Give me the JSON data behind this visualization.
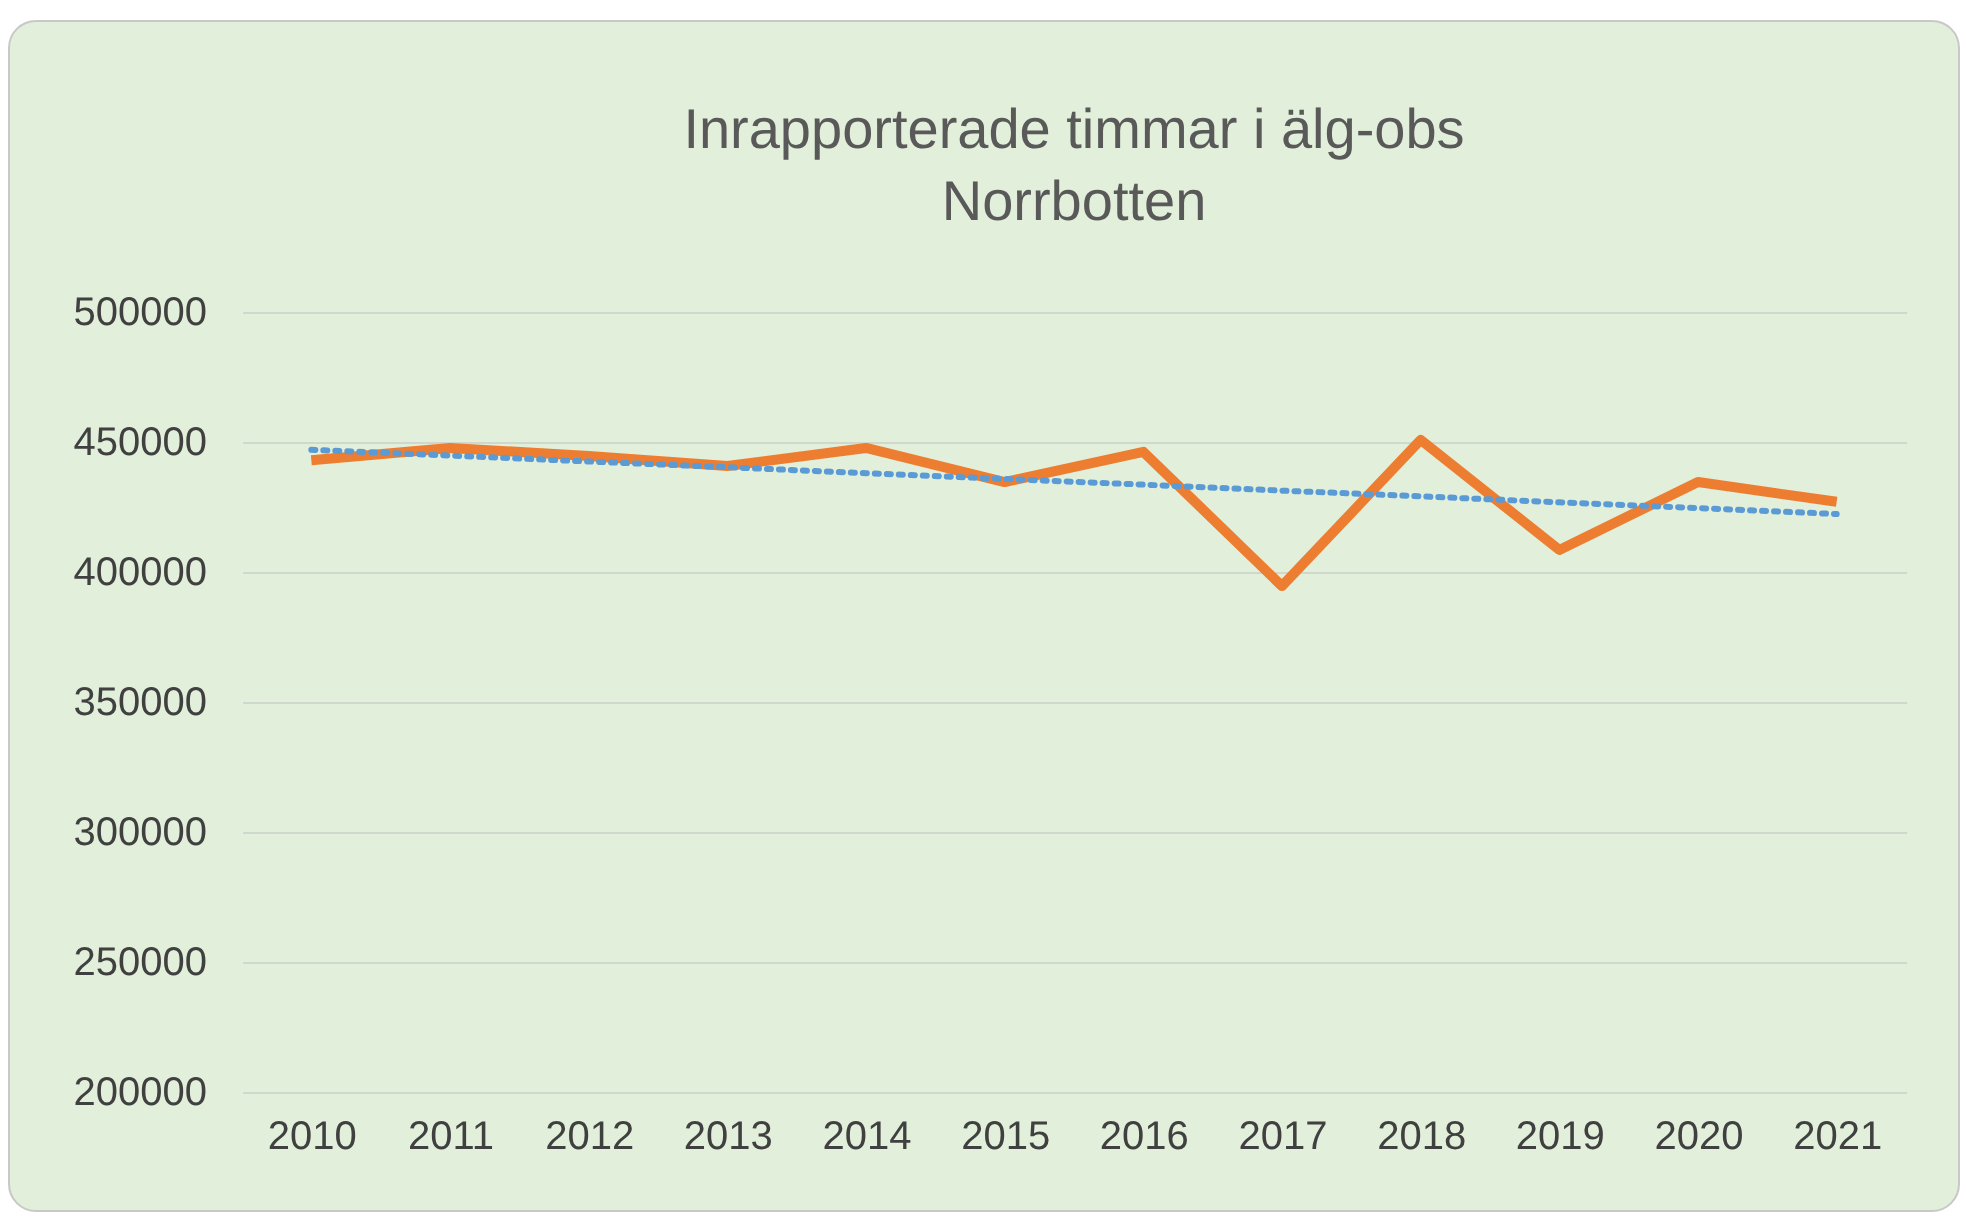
{
  "chart_data": {
    "type": "line",
    "title": "Inrapporterade timmar i älg-obs\nNorrbotten",
    "categories": [
      "2010",
      "2011",
      "2012",
      "2013",
      "2014",
      "2015",
      "2016",
      "2017",
      "2018",
      "2019",
      "2020",
      "2021"
    ],
    "series": [
      {
        "color": "#ed7d31",
        "values": [
          443000,
          447700,
          444600,
          440800,
          447700,
          434600,
          446200,
          394600,
          450800,
          408500,
          434600,
          427000
        ]
      },
      {
        "type": "line",
        "color": "#5b9bd5",
        "line_style": "dotted",
        "values": [
          447000,
          444800,
          442500,
          440300,
          438000,
          435800,
          433600,
          431300,
          429100,
          426800,
          424600,
          422300
        ]
      }
    ],
    "ylim": [
      200000,
      500000
    ],
    "yticks": [
      200000,
      250000,
      300000,
      350000,
      400000,
      450000,
      500000
    ],
    "grid": "y",
    "marker": "none",
    "line_style": "solid"
  }
}
